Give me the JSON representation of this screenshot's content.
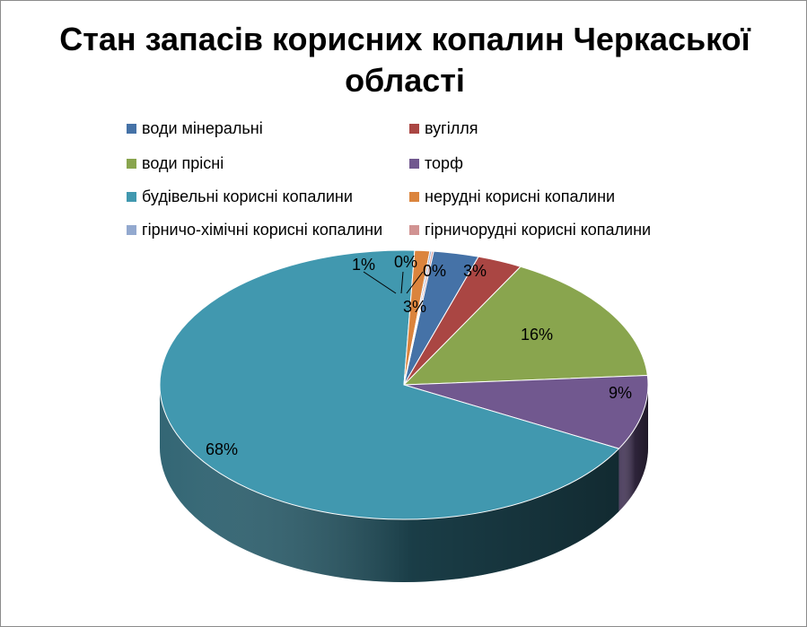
{
  "chart_data": {
    "type": "pie",
    "title": "Стан запасів корисних копалин Черкаської області",
    "legend_position": "top",
    "categories": [
      "води мінеральні",
      "вугілля",
      "води прісні",
      "торф",
      "будівельні корисні копалини",
      "нерудні корисні копалини",
      "гірничо-хімічні корисні копалини",
      "гірничорудні корисні копалини"
    ],
    "values": [
      3,
      3,
      16,
      9,
      68,
      1,
      0,
      0
    ],
    "data_labels": [
      "3%",
      "3%",
      "16%",
      "9%",
      "68%",
      "1%",
      "0%",
      "0%"
    ],
    "colors": [
      "#4572A7",
      "#AA4643",
      "#89A54E",
      "#71588F",
      "#4198AF",
      "#DB843D",
      "#93A9CF",
      "#D19392"
    ]
  }
}
